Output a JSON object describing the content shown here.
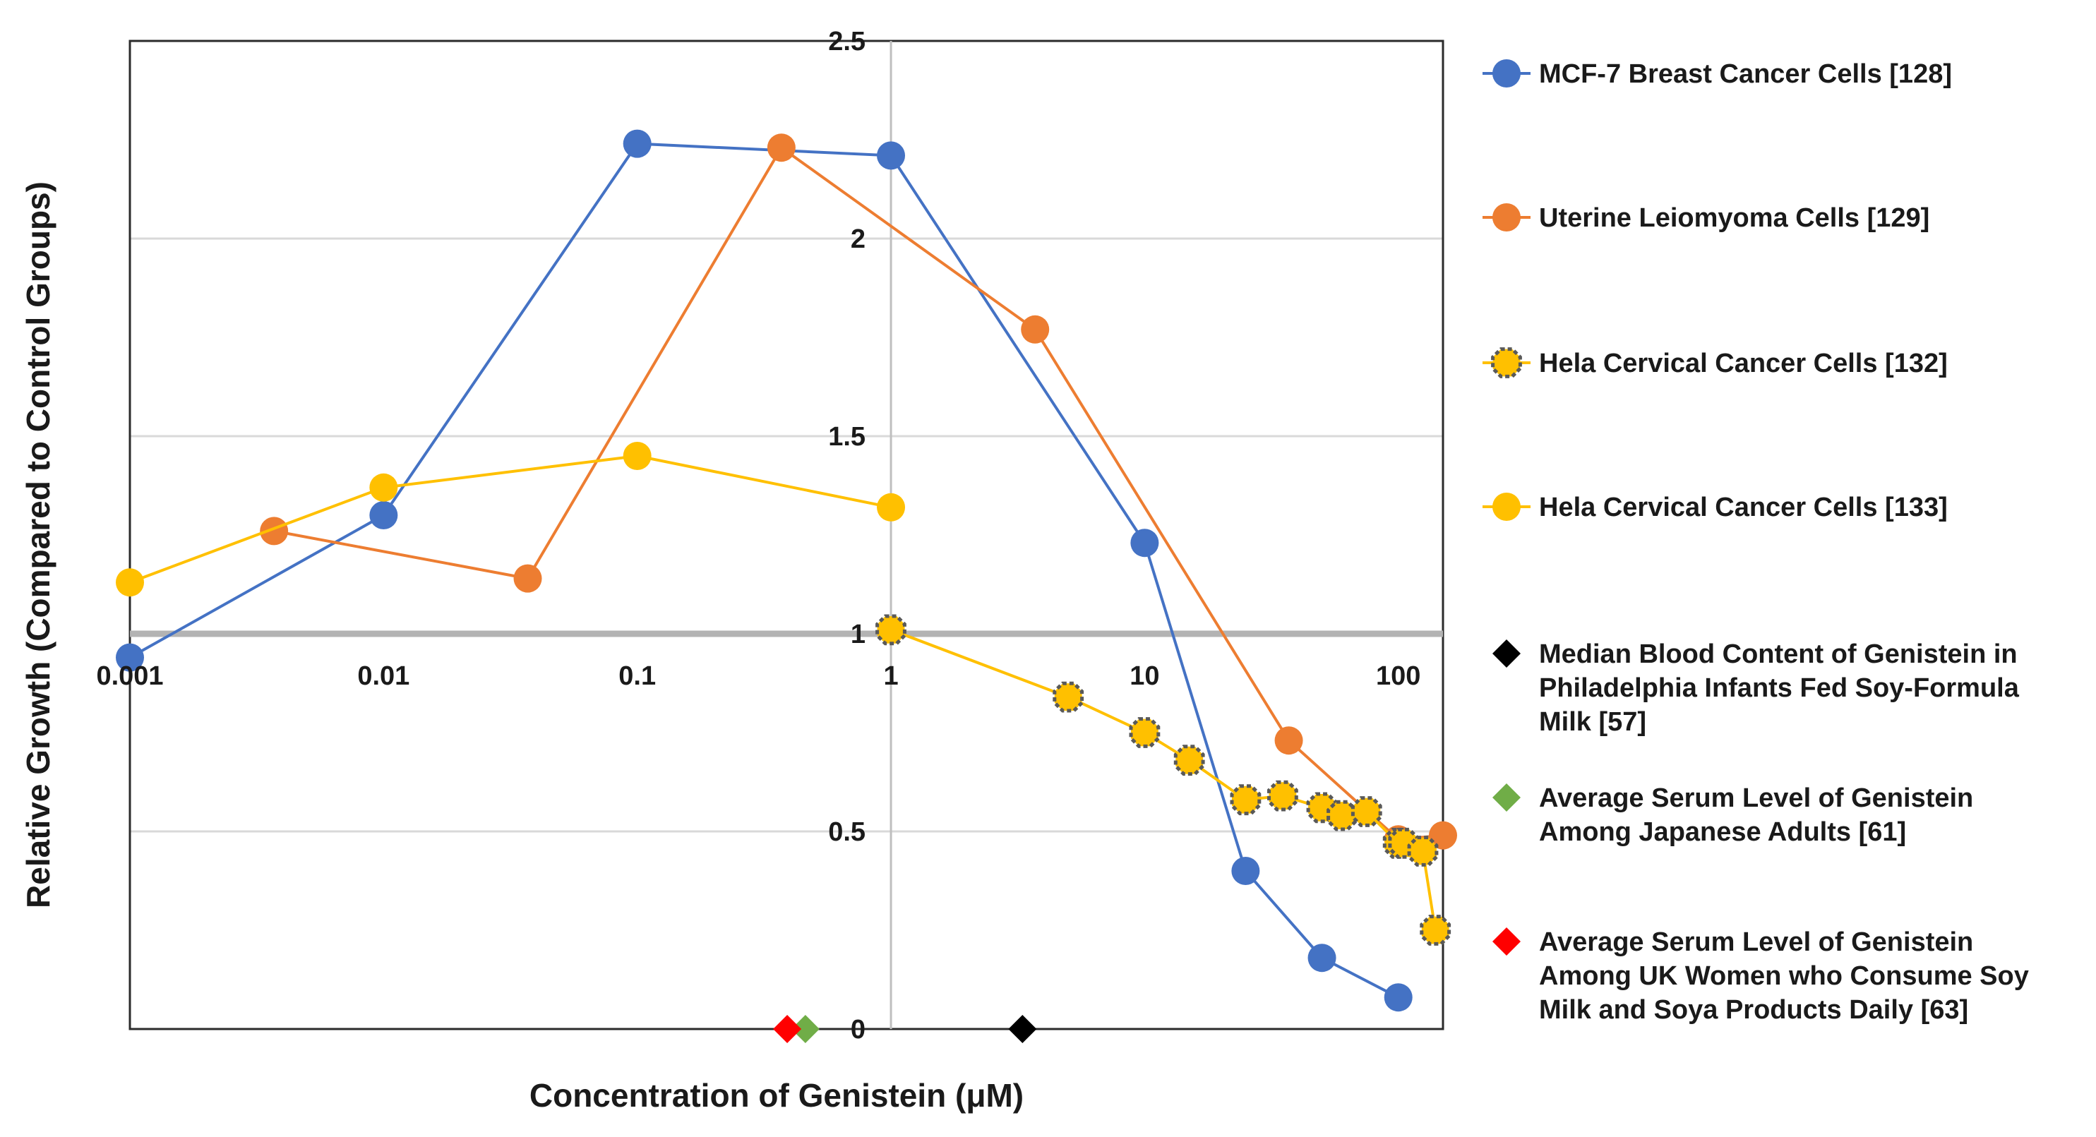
{
  "chart_data": {
    "type": "line",
    "title": "",
    "xlabel": "Concentration of Genistein (μM)",
    "ylabel": "Relative Growth (Compared to Control Groups)",
    "xscale": "log",
    "xlim": [
      0.001,
      150
    ],
    "ylim": [
      0,
      2.5
    ],
    "x_ticks": [
      {
        "value": 0.001,
        "label": "0.001"
      },
      {
        "value": 0.01,
        "label": "0.01"
      },
      {
        "value": 0.1,
        "label": "0.1"
      },
      {
        "value": 1,
        "label": "1"
      },
      {
        "value": 10,
        "label": "10"
      },
      {
        "value": 100,
        "label": "100"
      }
    ],
    "y_ticks": [
      {
        "value": 0,
        "label": "0"
      },
      {
        "value": 0.5,
        "label": "0.5"
      },
      {
        "value": 1,
        "label": "1"
      },
      {
        "value": 1.5,
        "label": "1.5"
      },
      {
        "value": 2,
        "label": "2"
      },
      {
        "value": 2.5,
        "label": "2.5"
      }
    ],
    "reference_line": 1,
    "grid": true,
    "legend_position": "right",
    "series": [
      {
        "name": "MCF-7 Breast Cancer Cells [128]",
        "color": "#4472C4",
        "marker": "circle",
        "points": [
          [
            0.001,
            0.94
          ],
          [
            0.01,
            1.3
          ],
          [
            0.1,
            2.24
          ],
          [
            1,
            2.21
          ],
          [
            10,
            1.23
          ],
          [
            25,
            0.4
          ],
          [
            50,
            0.18
          ],
          [
            100,
            0.08
          ]
        ]
      },
      {
        "name": "Uterine Leiomyoma Cells [129]",
        "color": "#ED7D31",
        "marker": "circle",
        "points": [
          [
            0.0037,
            1.26
          ],
          [
            0.037,
            1.14
          ],
          [
            0.37,
            2.23
          ],
          [
            3.7,
            1.77
          ],
          [
            37,
            0.73
          ],
          [
            100,
            0.48
          ],
          [
            150,
            0.49
          ]
        ]
      },
      {
        "name": "Hela Cervical Cancer Cells [132]",
        "color": "#FFC000",
        "marker": "octagon",
        "points": [
          [
            1,
            1.01
          ],
          [
            5,
            0.84
          ],
          [
            10,
            0.75
          ],
          [
            15,
            0.68
          ],
          [
            25,
            0.58
          ],
          [
            35,
            0.59
          ],
          [
            50,
            0.56
          ],
          [
            60,
            0.54
          ],
          [
            75,
            0.55
          ],
          [
            100,
            0.47
          ],
          [
            105,
            0.47
          ],
          [
            125,
            0.45
          ],
          [
            140,
            0.25
          ]
        ]
      },
      {
        "name": "Hela Cervical Cancer Cells [133]",
        "color": "#FFC000",
        "marker": "circle",
        "points": [
          [
            0.001,
            1.13
          ],
          [
            0.01,
            1.37
          ],
          [
            0.1,
            1.45
          ],
          [
            1,
            1.32
          ]
        ]
      }
    ],
    "markers": [
      {
        "name": "Median Blood Content of Genistein in Philadelphia Infants Fed Soy-Formula Milk [57]",
        "legend_lines": [
          "Median Blood Content of Genistein in",
          "Philadelphia Infants Fed Soy-Formula",
          "Milk [57]"
        ],
        "color": "#000000",
        "x": 3.3,
        "y": 0
      },
      {
        "name": "Average Serum Level of Genistein Among Japanese Adults [61]",
        "legend_lines": [
          "Average Serum Level of Genistein",
          "Among Japanese Adults [61]"
        ],
        "color": "#70AD47",
        "x": 0.46,
        "y": 0
      },
      {
        "name": "Average Serum Level of Genistein Among UK Women who Consume Soy Milk and Soya Products Daily [63]",
        "legend_lines": [
          "Average Serum Level of Genistein",
          "Among UK Women who Consume Soy",
          "Milk and Soya Products Daily [63]"
        ],
        "color": "#FF0000",
        "x": 0.39,
        "y": 0
      }
    ]
  }
}
